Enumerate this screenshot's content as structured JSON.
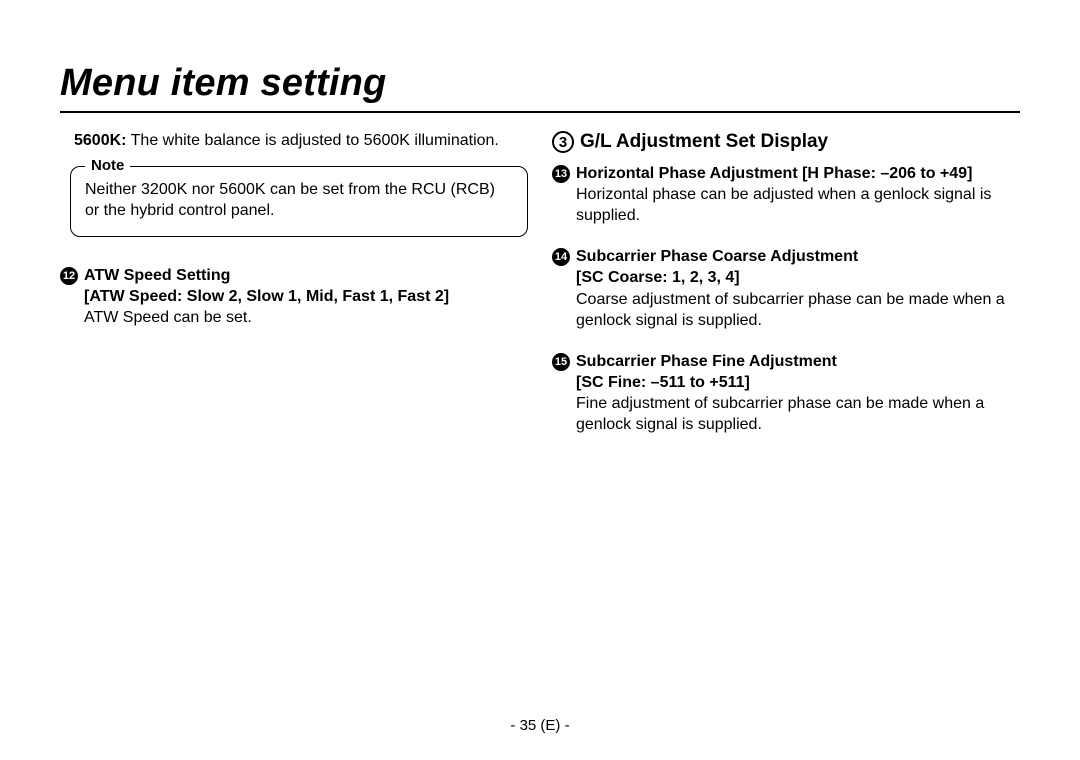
{
  "title": "Menu item setting",
  "left": {
    "kv": {
      "label": "5600K:",
      "text": "The white balance is adjusted to 5600K illumination."
    },
    "note": {
      "label": "Note",
      "text": "Neither 3200K nor 5600K can be set from the RCU (RCB) or the hybrid control panel."
    },
    "item12": {
      "num": "12",
      "head": "ATW Speed Setting",
      "sub": "[ATW Speed: Slow 2, Slow 1, Mid, Fast 1, Fast 2]",
      "desc": "ATW Speed can be set."
    }
  },
  "right": {
    "heading": {
      "num": "3",
      "text": "G/L Adjustment Set Display"
    },
    "item13": {
      "num": "13",
      "head": "Horizontal Phase Adjustment [H Phase: –206 to +49]",
      "desc": "Horizontal phase can be adjusted when a genlock signal is supplied."
    },
    "item14": {
      "num": "14",
      "head": "Subcarrier Phase Coarse Adjustment",
      "sub": "[SC Coarse: 1, 2, 3, 4]",
      "desc": "Coarse adjustment of subcarrier phase can be made when a genlock signal is supplied."
    },
    "item15": {
      "num": "15",
      "head": "Subcarrier Phase Fine Adjustment",
      "sub": "[SC Fine: –511 to +511]",
      "desc": "Fine adjustment of subcarrier phase can be made when a genlock signal is supplied."
    }
  },
  "page_number": "- 35 (E) -"
}
